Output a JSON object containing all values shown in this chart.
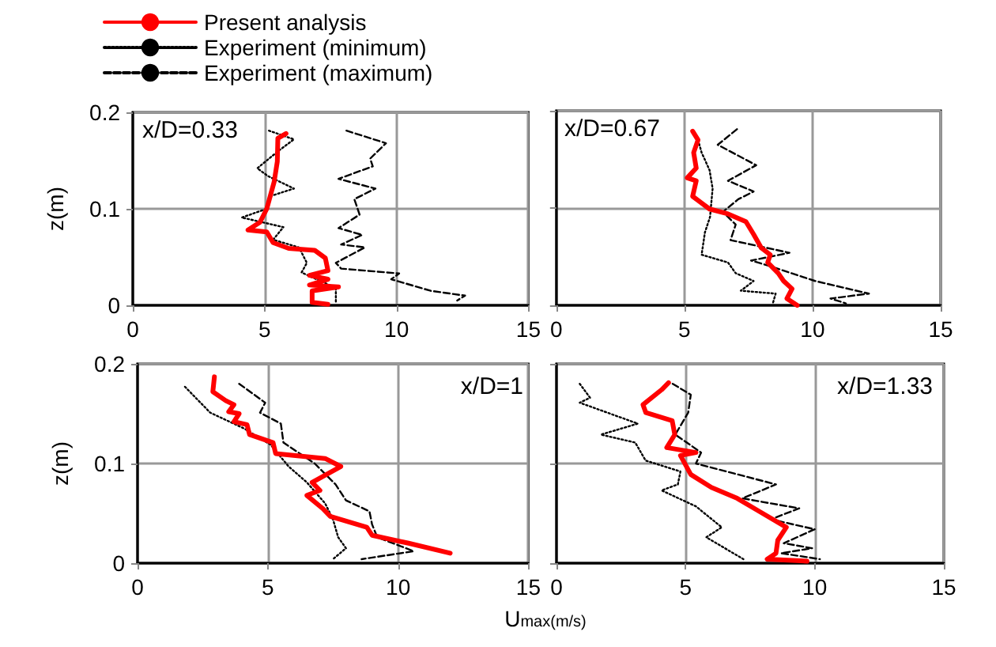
{
  "chart_data": [
    {
      "type": "line",
      "annotations": [
        "x/D=0.33"
      ],
      "ylabel": "z(m)",
      "xlim": [
        0,
        15
      ],
      "ylim": [
        0,
        0.2
      ],
      "xticks": [
        0,
        5,
        10,
        15
      ],
      "yticks": [
        0,
        0.1,
        0.2
      ],
      "grid": true,
      "marker": "none",
      "legend": "top left",
      "series": [
        {
          "name": "Present analysis",
          "color": "#ff0000",
          "line_style": "solid",
          "x": [
            5.81,
            5.5,
            5.48,
            5.36,
            5.08,
            4.82,
            4.37,
            5.08,
            5.32,
            5.91,
            6.9,
            7.3,
            7.4,
            6.7,
            7.4,
            6.7,
            7.8,
            6.8,
            6.8,
            7.4
          ],
          "values": [
            0.178,
            0.173,
            0.149,
            0.128,
            0.1,
            0.086,
            0.078,
            0.076,
            0.065,
            0.059,
            0.057,
            0.049,
            0.036,
            0.031,
            0.027,
            0.021,
            0.019,
            0.015,
            0.003,
            0.001
          ]
        },
        {
          "name": "Experiment (minimum)",
          "color": "#000000",
          "line_style": "dotted",
          "x": [
            5.16,
            6.11,
            5.52,
            4.72,
            5.12,
            6.11,
            5.2,
            5.08,
            4.13,
            5.71,
            5.32,
            6.3,
            6.6,
            6.4,
            7.7,
            7.7
          ],
          "values": [
            0.181,
            0.172,
            0.16,
            0.142,
            0.134,
            0.121,
            0.113,
            0.1,
            0.091,
            0.081,
            0.068,
            0.06,
            0.044,
            0.034,
            0.018,
            0.002
          ]
        },
        {
          "name": "Experiment (maximum)",
          "color": "#000000",
          "line_style": "dashed",
          "x": [
            8.1,
            9.6,
            9.0,
            9.1,
            7.8,
            9.2,
            8.4,
            8.6,
            7.8,
            8.7,
            7.9,
            8.8,
            7.7,
            7.9,
            10.1,
            9.8,
            11.3,
            12.6,
            12.3
          ],
          "values": [
            0.181,
            0.168,
            0.152,
            0.144,
            0.131,
            0.121,
            0.11,
            0.094,
            0.08,
            0.073,
            0.063,
            0.06,
            0.044,
            0.038,
            0.033,
            0.027,
            0.015,
            0.01,
            0.005
          ]
        }
      ]
    },
    {
      "type": "line",
      "annotations": [
        "x/D=0.67"
      ],
      "xlim": [
        0,
        15
      ],
      "ylim": [
        0,
        0.2
      ],
      "xticks": [
        0,
        5,
        10,
        15
      ],
      "yticks": [
        0,
        0.1,
        0.2
      ],
      "grid": true,
      "marker": "none",
      "tick_labels": "x",
      "series": [
        {
          "color": "#ff0000",
          "line_style": "solid",
          "x": [
            5.32,
            5.53,
            5.36,
            5.46,
            5.11,
            5.46,
            5.32,
            5.98,
            6.7,
            7.4,
            7.7,
            8.0,
            8.35,
            8.25,
            8.66,
            8.87,
            9.2,
            9.0,
            9.4
          ],
          "values": [
            0.179,
            0.17,
            0.157,
            0.141,
            0.131,
            0.128,
            0.112,
            0.099,
            0.094,
            0.086,
            0.073,
            0.059,
            0.052,
            0.044,
            0.033,
            0.025,
            0.017,
            0.007,
            0.0
          ]
        },
        {
          "color": "#000000",
          "line_style": "dotted",
          "x": [
            5.53,
            5.67,
            5.98,
            6.1,
            6.0,
            5.8,
            5.67,
            6.7,
            7.0,
            7.7,
            7.2,
            8.56,
            8.45
          ],
          "values": [
            0.17,
            0.157,
            0.139,
            0.12,
            0.091,
            0.075,
            0.052,
            0.044,
            0.033,
            0.025,
            0.015,
            0.012,
            0.002
          ]
        },
        {
          "color": "#000000",
          "line_style": "dashed",
          "x": [
            7.05,
            6.3,
            7.8,
            6.7,
            7.7,
            7.1,
            6.5,
            7.0,
            6.8,
            9.1,
            7.6,
            8.25,
            10.1,
            12.2,
            10.7,
            11.3
          ],
          "values": [
            0.181,
            0.165,
            0.144,
            0.128,
            0.117,
            0.109,
            0.096,
            0.083,
            0.067,
            0.054,
            0.046,
            0.041,
            0.025,
            0.012,
            0.007,
            0.002
          ]
        }
      ]
    },
    {
      "type": "line",
      "annotations": [
        "x/D=1"
      ],
      "ylabel": "z(m)",
      "xlabel": "U$_{max(m/s)}$",
      "xlim": [
        0,
        15
      ],
      "ylim": [
        0,
        0.2
      ],
      "xticks": [
        0,
        5,
        10,
        15
      ],
      "yticks": [
        0,
        0.1,
        0.2
      ],
      "grid": true,
      "marker": "none",
      "series": [
        {
          "color": "#ff0000",
          "line_style": "solid",
          "x": [
            2.95,
            2.89,
            3.39,
            3.7,
            3.5,
            3.9,
            3.7,
            4.2,
            4.3,
            5.2,
            5.3,
            7.2,
            7.8,
            6.7,
            7.0,
            6.5,
            7.1,
            7.4,
            8.8,
            9.0,
            10.4,
            12.0
          ],
          "values": [
            0.187,
            0.172,
            0.163,
            0.159,
            0.152,
            0.15,
            0.142,
            0.139,
            0.129,
            0.121,
            0.11,
            0.105,
            0.097,
            0.081,
            0.073,
            0.068,
            0.055,
            0.047,
            0.036,
            0.028,
            0.02,
            0.01
          ]
        },
        {
          "color": "#000000",
          "line_style": "dotted",
          "x": [
            1.82,
            2.79,
            4.1,
            5.1,
            5.8,
            6.5,
            7.2,
            7.5,
            7.7,
            8.0,
            7.5
          ],
          "values": [
            0.177,
            0.151,
            0.135,
            0.119,
            0.097,
            0.081,
            0.06,
            0.044,
            0.026,
            0.015,
            0.004
          ]
        },
        {
          "color": "#000000",
          "line_style": "dashed",
          "x": [
            3.9,
            4.9,
            4.7,
            5.5,
            5.6,
            6.8,
            7.6,
            8.0,
            8.9,
            9.0,
            9.2,
            10.6,
            8.6
          ],
          "values": [
            0.18,
            0.161,
            0.151,
            0.14,
            0.121,
            0.1,
            0.079,
            0.063,
            0.052,
            0.039,
            0.026,
            0.012,
            0.004
          ]
        }
      ]
    },
    {
      "type": "line",
      "annotations": [
        "x/D=1.33"
      ],
      "xlim": [
        0,
        15
      ],
      "ylim": [
        0,
        0.2
      ],
      "xticks": [
        0,
        5,
        10,
        15
      ],
      "yticks": [
        0,
        0.1,
        0.2
      ],
      "grid": true,
      "marker": "none",
      "tick_labels": "x",
      "series": [
        {
          "color": "#ff0000",
          "line_style": "solid",
          "x": [
            4.34,
            4.07,
            3.35,
            3.46,
            4.48,
            4.58,
            4.27,
            5.4,
            4.8,
            5.2,
            6.0,
            7.0,
            7.85,
            8.9,
            8.57,
            8.5,
            8.16,
            9.7
          ],
          "values": [
            0.181,
            0.174,
            0.159,
            0.151,
            0.143,
            0.129,
            0.116,
            0.111,
            0.108,
            0.089,
            0.076,
            0.065,
            0.052,
            0.036,
            0.023,
            0.01,
            0.004,
            0.002
          ]
        },
        {
          "color": "#000000",
          "line_style": "dotted",
          "x": [
            0.9,
            1.3,
            0.9,
            3.15,
            1.72,
            3.05,
            3.45,
            4.8,
            4.7,
            4.07,
            5.4,
            6.4,
            5.8,
            7.24
          ],
          "values": [
            0.18,
            0.166,
            0.161,
            0.14,
            0.129,
            0.121,
            0.103,
            0.092,
            0.079,
            0.073,
            0.057,
            0.036,
            0.026,
            0.004
          ]
        },
        {
          "color": "#000000",
          "line_style": "dashed",
          "x": [
            4.5,
            5.2,
            5.1,
            4.6,
            5.6,
            5.4,
            8.5,
            7.2,
            9.4,
            8.3,
            10.0,
            8.8,
            9.9,
            8.7,
            10.2
          ],
          "values": [
            0.18,
            0.169,
            0.151,
            0.129,
            0.111,
            0.1,
            0.079,
            0.065,
            0.055,
            0.044,
            0.034,
            0.02,
            0.015,
            0.01,
            0.004
          ]
        }
      ]
    }
  ]
}
